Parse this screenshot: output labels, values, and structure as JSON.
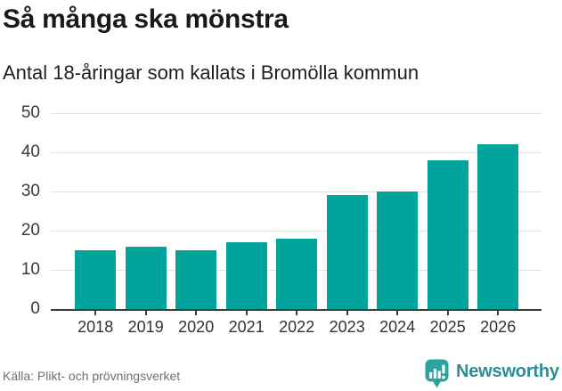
{
  "header": {
    "title": "Så många ska mönstra",
    "subtitle": "Antal 18-åringar som kallats i Bromölla kommun"
  },
  "chart_data": {
    "type": "bar",
    "title": "Så många ska mönstra",
    "subtitle": "Antal 18-åringar som kallats i Bromölla kommun",
    "categories": [
      "2018",
      "2019",
      "2020",
      "2021",
      "2022",
      "2023",
      "2024",
      "2025",
      "2026"
    ],
    "values": [
      15,
      16,
      15,
      17,
      18,
      29,
      30,
      38,
      42
    ],
    "xlabel": "",
    "ylabel": "",
    "ylim": [
      0,
      50
    ],
    "yticks": [
      0,
      10,
      20,
      30,
      40,
      50
    ],
    "grid": "horizontal",
    "legend": "none",
    "bar_color": "#00a49a",
    "axis_color": "#3b3b3b",
    "gridline_color": "#e2e2e2"
  },
  "footer": {
    "source": "Källa: Plikt- och prövningsverket",
    "brand": "Newsworthy",
    "brand_text_color": "#2c8d98",
    "brand_icon_color": "#2aa49e"
  }
}
